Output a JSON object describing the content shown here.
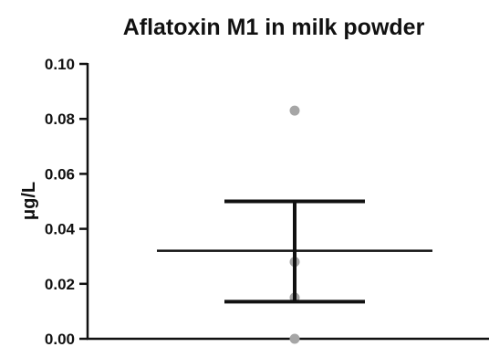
{
  "chart_data": {
    "type": "scatter",
    "title": "Aflatoxin M1 in milk powder",
    "xlabel": "",
    "ylabel": "μg/L",
    "ylim": [
      0,
      0.1
    ],
    "yticks": [
      "0.00",
      "0.02",
      "0.04",
      "0.06",
      "0.08",
      "0.10"
    ],
    "grid": false,
    "points": [
      0.083,
      0.028,
      0.015,
      0.0
    ],
    "point_color": "#a6a6a6",
    "mean": 0.032,
    "error_upper": 0.05,
    "error_lower": 0.0135,
    "line_color": "#111111"
  }
}
